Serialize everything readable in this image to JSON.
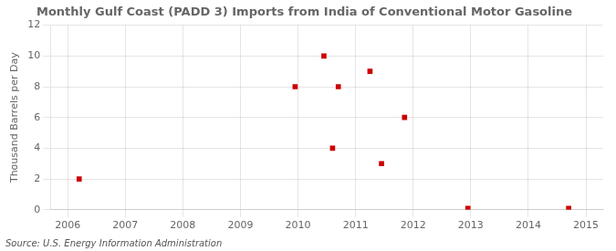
{
  "chart_data": {
    "type": "scatter",
    "title": "Monthly Gulf Coast (PADD 3) Imports from India of Conventional Motor Gasoline",
    "ylabel": "Thousand Barrels per Day",
    "source": "Source: U.S. Energy Information Administration",
    "x": [
      2006.2,
      2009.95,
      2010.45,
      2010.6,
      2010.7,
      2011.25,
      2011.45,
      2011.85,
      2012.95,
      2014.7
    ],
    "values": [
      2,
      8,
      10,
      4,
      8,
      9,
      3,
      6,
      0.08,
      0.08
    ],
    "color": "#cc0000",
    "marker": "square",
    "xlim": [
      2005.7,
      2015.3
    ],
    "xticks": [
      2006,
      2007,
      2008,
      2009,
      2010,
      2011,
      2012,
      2013,
      2014,
      2015
    ],
    "ylim": [
      0,
      12
    ],
    "yticks": [
      0,
      2,
      4,
      6,
      8,
      10,
      12
    ],
    "grid": true
  }
}
